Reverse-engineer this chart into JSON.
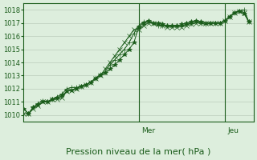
{
  "title": "",
  "xlabel": "Pression niveau de la mer( hPa )",
  "ylabel": "",
  "ylim": [
    1009.5,
    1018.5
  ],
  "xlim": [
    0,
    48
  ],
  "yticks": [
    1010,
    1011,
    1012,
    1013,
    1014,
    1015,
    1016,
    1017,
    1018
  ],
  "day_lines": [
    24,
    42
  ],
  "day_labels": [
    [
      24,
      "Mer"
    ],
    [
      42,
      "Jeu"
    ]
  ],
  "bg_color": "#ddeedd",
  "grid_color": "#bbccbb",
  "line_color": "#1a5c1a",
  "series": [
    [
      1010.5,
      1010.1,
      1010.6,
      1010.8,
      1011.0,
      1011.0,
      1011.2,
      1011.3,
      1011.5,
      1011.8,
      1011.9,
      1012.0,
      1012.2,
      1012.3,
      1012.5,
      1012.8,
      1013.0,
      1013.2,
      1013.5,
      1013.8,
      1014.2,
      1014.6,
      1015.0,
      1015.5,
      1016.7,
      1017.0,
      1017.2,
      1017.0,
      1017.0,
      1016.9,
      1016.8,
      1016.8,
      1016.8,
      1016.9,
      1017.0,
      1017.1,
      1017.2,
      1017.1,
      1017.0,
      1017.0,
      1017.0,
      1017.0,
      1017.2,
      1017.5,
      1017.8,
      1017.9,
      1017.7,
      1017.1
    ],
    [
      1010.5,
      1010.1,
      1010.6,
      1010.9,
      1011.1,
      1011.0,
      1011.2,
      1011.4,
      1011.6,
      1012.0,
      1012.1,
      1012.1,
      1012.2,
      1012.3,
      1012.5,
      1012.8,
      1013.1,
      1013.3,
      1013.8,
      1014.2,
      1014.6,
      1015.0,
      1015.5,
      1016.2,
      1016.8,
      1017.1,
      1017.1,
      1017.0,
      1016.8,
      1016.8,
      1016.8,
      1016.8,
      1016.8,
      1016.8,
      1016.9,
      1017.0,
      1017.1,
      1017.0,
      1016.9,
      1017.0,
      1017.0,
      1017.0,
      1017.2,
      1017.5,
      1017.8,
      1017.9,
      1018.0,
      1017.1
    ],
    [
      1010.1,
      1010.1,
      1010.5,
      1010.7,
      1011.0,
      1011.0,
      1011.2,
      1011.2,
      1011.3,
      1011.8,
      1011.9,
      1012.0,
      1012.2,
      1012.3,
      1012.5,
      1012.8,
      1013.0,
      1013.5,
      1014.0,
      1014.5,
      1015.0,
      1015.5,
      1016.0,
      1016.5,
      1016.5,
      1016.8,
      1017.0,
      1017.0,
      1016.9,
      1016.8,
      1016.7,
      1016.7,
      1016.7,
      1016.7,
      1016.8,
      1016.9,
      1017.0,
      1017.0,
      1017.0,
      1017.0,
      1017.0,
      1017.0,
      1017.2,
      1017.5,
      1017.8,
      1017.9,
      1017.8,
      1017.1
    ]
  ]
}
